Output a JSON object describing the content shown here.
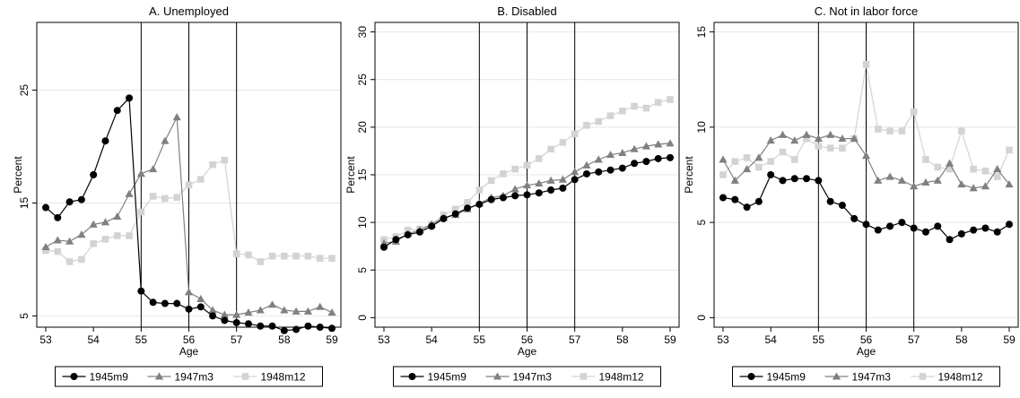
{
  "chart_data": [
    {
      "type": "line",
      "title": "A. Unemployed",
      "xlabel": "Age",
      "ylabel": "Percent",
      "xlim": [
        53,
        59
      ],
      "ylim": [
        4,
        31
      ],
      "yticks": [
        5,
        15,
        25
      ],
      "xticks": [
        53,
        54,
        55,
        56,
        57,
        58,
        59
      ],
      "vlines": [
        55,
        56,
        57
      ],
      "series": [
        {
          "name": "1945m9",
          "x": [
            53,
            53.25,
            53.5,
            53.75,
            54,
            54.25,
            54.5,
            54.75,
            55,
            55.25,
            55.5,
            55.75,
            56,
            56.25,
            56.5,
            56.75,
            57,
            57.25,
            57.5,
            57.75,
            58,
            58.25,
            58.5,
            58.75,
            59
          ],
          "values": [
            14.6,
            13.7,
            15.1,
            15.3,
            17.5,
            20.5,
            23.2,
            24.3,
            7.2,
            6.2,
            6.1,
            6.1,
            5.6,
            5.8,
            5.0,
            4.6,
            4.4,
            4.3,
            4.1,
            4.1,
            3.7,
            3.8,
            4.1,
            4.0,
            3.9
          ]
        },
        {
          "name": "1947m3",
          "x": [
            53,
            53.25,
            53.5,
            53.75,
            54,
            54.25,
            54.5,
            54.75,
            55,
            55.25,
            55.5,
            55.75,
            56,
            56.25,
            56.5,
            56.75,
            57,
            57.25,
            57.5,
            57.75,
            58,
            58.25,
            58.5,
            58.75,
            59
          ],
          "values": [
            11.1,
            11.7,
            11.6,
            12.2,
            13.1,
            13.3,
            13.8,
            15.8,
            17.6,
            18.0,
            20.5,
            22.6,
            7.1,
            6.5,
            5.5,
            5.1,
            5.1,
            5.3,
            5.5,
            6.0,
            5.5,
            5.4,
            5.4,
            5.8,
            5.3
          ]
        },
        {
          "name": "1948m12",
          "x": [
            53,
            53.25,
            53.5,
            53.75,
            54,
            54.25,
            54.5,
            54.75,
            55,
            55.25,
            55.5,
            55.75,
            56,
            56.25,
            56.5,
            56.75,
            57,
            57.25,
            57.5,
            57.75,
            58,
            58.25,
            58.5,
            58.75,
            59
          ],
          "values": [
            10.8,
            10.7,
            9.8,
            10.0,
            11.4,
            11.8,
            12.1,
            12.1,
            14.2,
            15.6,
            15.4,
            15.5,
            16.6,
            17.1,
            18.4,
            18.8,
            10.5,
            10.4,
            9.8,
            10.3,
            10.3,
            10.3,
            10.3,
            10.1,
            10.1
          ]
        }
      ]
    },
    {
      "type": "line",
      "title": "B. Disabled",
      "xlabel": "Age",
      "ylabel": "Percent",
      "xlim": [
        53,
        59
      ],
      "ylim": [
        -1,
        31
      ],
      "yticks": [
        0,
        5,
        10,
        15,
        20,
        25,
        30
      ],
      "xticks": [
        53,
        54,
        55,
        56,
        57,
        58,
        59
      ],
      "vlines": [
        55,
        56,
        57
      ],
      "series": [
        {
          "name": "1945m9",
          "x": [
            53,
            53.25,
            53.5,
            53.75,
            54,
            54.25,
            54.5,
            54.75,
            55,
            55.25,
            55.5,
            55.75,
            56,
            56.25,
            56.5,
            56.75,
            57,
            57.25,
            57.5,
            57.75,
            58,
            58.25,
            58.5,
            58.75,
            59
          ],
          "values": [
            7.4,
            8.2,
            8.7,
            9.0,
            9.6,
            10.4,
            10.9,
            11.5,
            11.9,
            12.4,
            12.6,
            12.8,
            12.9,
            13.1,
            13.4,
            13.6,
            14.5,
            15.1,
            15.3,
            15.5,
            15.7,
            16.2,
            16.4,
            16.7,
            16.8
          ]
        },
        {
          "name": "1947m3",
          "x": [
            53,
            53.25,
            53.5,
            53.75,
            54,
            54.25,
            54.5,
            54.75,
            55,
            55.25,
            55.5,
            55.75,
            56,
            56.25,
            56.5,
            56.75,
            57,
            57.25,
            57.5,
            57.75,
            58,
            58.25,
            58.5,
            58.75,
            59
          ],
          "values": [
            7.8,
            8.0,
            8.8,
            9.2,
            9.8,
            10.5,
            10.8,
            11.4,
            12.0,
            12.6,
            12.8,
            13.5,
            13.9,
            14.1,
            14.4,
            14.5,
            15.3,
            16.0,
            16.6,
            17.1,
            17.3,
            17.7,
            18.0,
            18.2,
            18.3
          ]
        },
        {
          "name": "1948m12",
          "x": [
            53,
            53.25,
            53.5,
            53.75,
            54,
            54.25,
            54.5,
            54.75,
            55,
            55.25,
            55.5,
            55.75,
            56,
            56.25,
            56.5,
            56.75,
            57,
            57.25,
            57.5,
            57.75,
            58,
            58.25,
            58.5,
            58.75,
            59
          ],
          "values": [
            8.2,
            8.5,
            9.2,
            9.3,
            9.8,
            10.8,
            11.4,
            12.1,
            13.4,
            14.4,
            15.1,
            15.6,
            16.0,
            16.7,
            17.7,
            18.4,
            19.3,
            20.2,
            20.6,
            21.2,
            21.7,
            22.2,
            22.0,
            22.6,
            22.9
          ]
        }
      ]
    },
    {
      "type": "line",
      "title": "C. Not in labor force",
      "xlabel": "Age",
      "ylabel": "Percent",
      "xlim": [
        53,
        59
      ],
      "ylim": [
        -0.5,
        15.5
      ],
      "yticks": [
        0,
        5,
        10,
        15
      ],
      "xticks": [
        53,
        54,
        55,
        56,
        57,
        58,
        59
      ],
      "vlines": [
        55,
        56,
        57
      ],
      "series": [
        {
          "name": "1945m9",
          "x": [
            53,
            53.25,
            53.5,
            53.75,
            54,
            54.25,
            54.5,
            54.75,
            55,
            55.25,
            55.5,
            55.75,
            56,
            56.25,
            56.5,
            56.75,
            57,
            57.25,
            57.5,
            57.75,
            58,
            58.25,
            58.5,
            58.75,
            59
          ],
          "values": [
            6.3,
            6.2,
            5.8,
            6.1,
            7.5,
            7.2,
            7.3,
            7.3,
            7.2,
            6.1,
            5.9,
            5.2,
            4.9,
            4.6,
            4.8,
            5.0,
            4.7,
            4.5,
            4.8,
            4.1,
            4.4,
            4.6,
            4.7,
            4.5,
            4.9
          ]
        },
        {
          "name": "1947m3",
          "x": [
            53,
            53.25,
            53.5,
            53.75,
            54,
            54.25,
            54.5,
            54.75,
            55,
            55.25,
            55.5,
            55.75,
            56,
            56.25,
            56.5,
            56.75,
            57,
            57.25,
            57.5,
            57.75,
            58,
            58.25,
            58.5,
            58.75,
            59
          ],
          "values": [
            8.3,
            7.2,
            7.8,
            8.4,
            9.3,
            9.6,
            9.3,
            9.6,
            9.4,
            9.6,
            9.4,
            9.4,
            8.5,
            7.2,
            7.4,
            7.2,
            6.9,
            7.1,
            7.2,
            8.1,
            7.0,
            6.8,
            6.9,
            7.8,
            7.0
          ]
        },
        {
          "name": "1948m12",
          "x": [
            53,
            53.25,
            53.5,
            53.75,
            54,
            54.25,
            54.5,
            54.75,
            55,
            55.25,
            55.5,
            55.75,
            56,
            56.25,
            56.5,
            56.75,
            57,
            57.25,
            57.5,
            57.75,
            58,
            58.25,
            58.5,
            58.75,
            59
          ],
          "values": [
            7.5,
            8.2,
            8.4,
            7.9,
            8.2,
            8.7,
            8.3,
            9.4,
            9.0,
            8.9,
            8.9,
            9.4,
            13.3,
            9.9,
            9.8,
            9.8,
            10.8,
            8.3,
            7.9,
            7.8,
            9.8,
            7.8,
            7.7,
            7.4,
            8.8
          ]
        }
      ]
    }
  ],
  "series_styles": [
    {
      "color": "#000000",
      "marker": "circle"
    },
    {
      "color": "#808080",
      "marker": "triangle"
    },
    {
      "color": "#d3d3d3",
      "marker": "square"
    }
  ],
  "gridline_color": "#e6e6e6",
  "vline_color": "#000000"
}
